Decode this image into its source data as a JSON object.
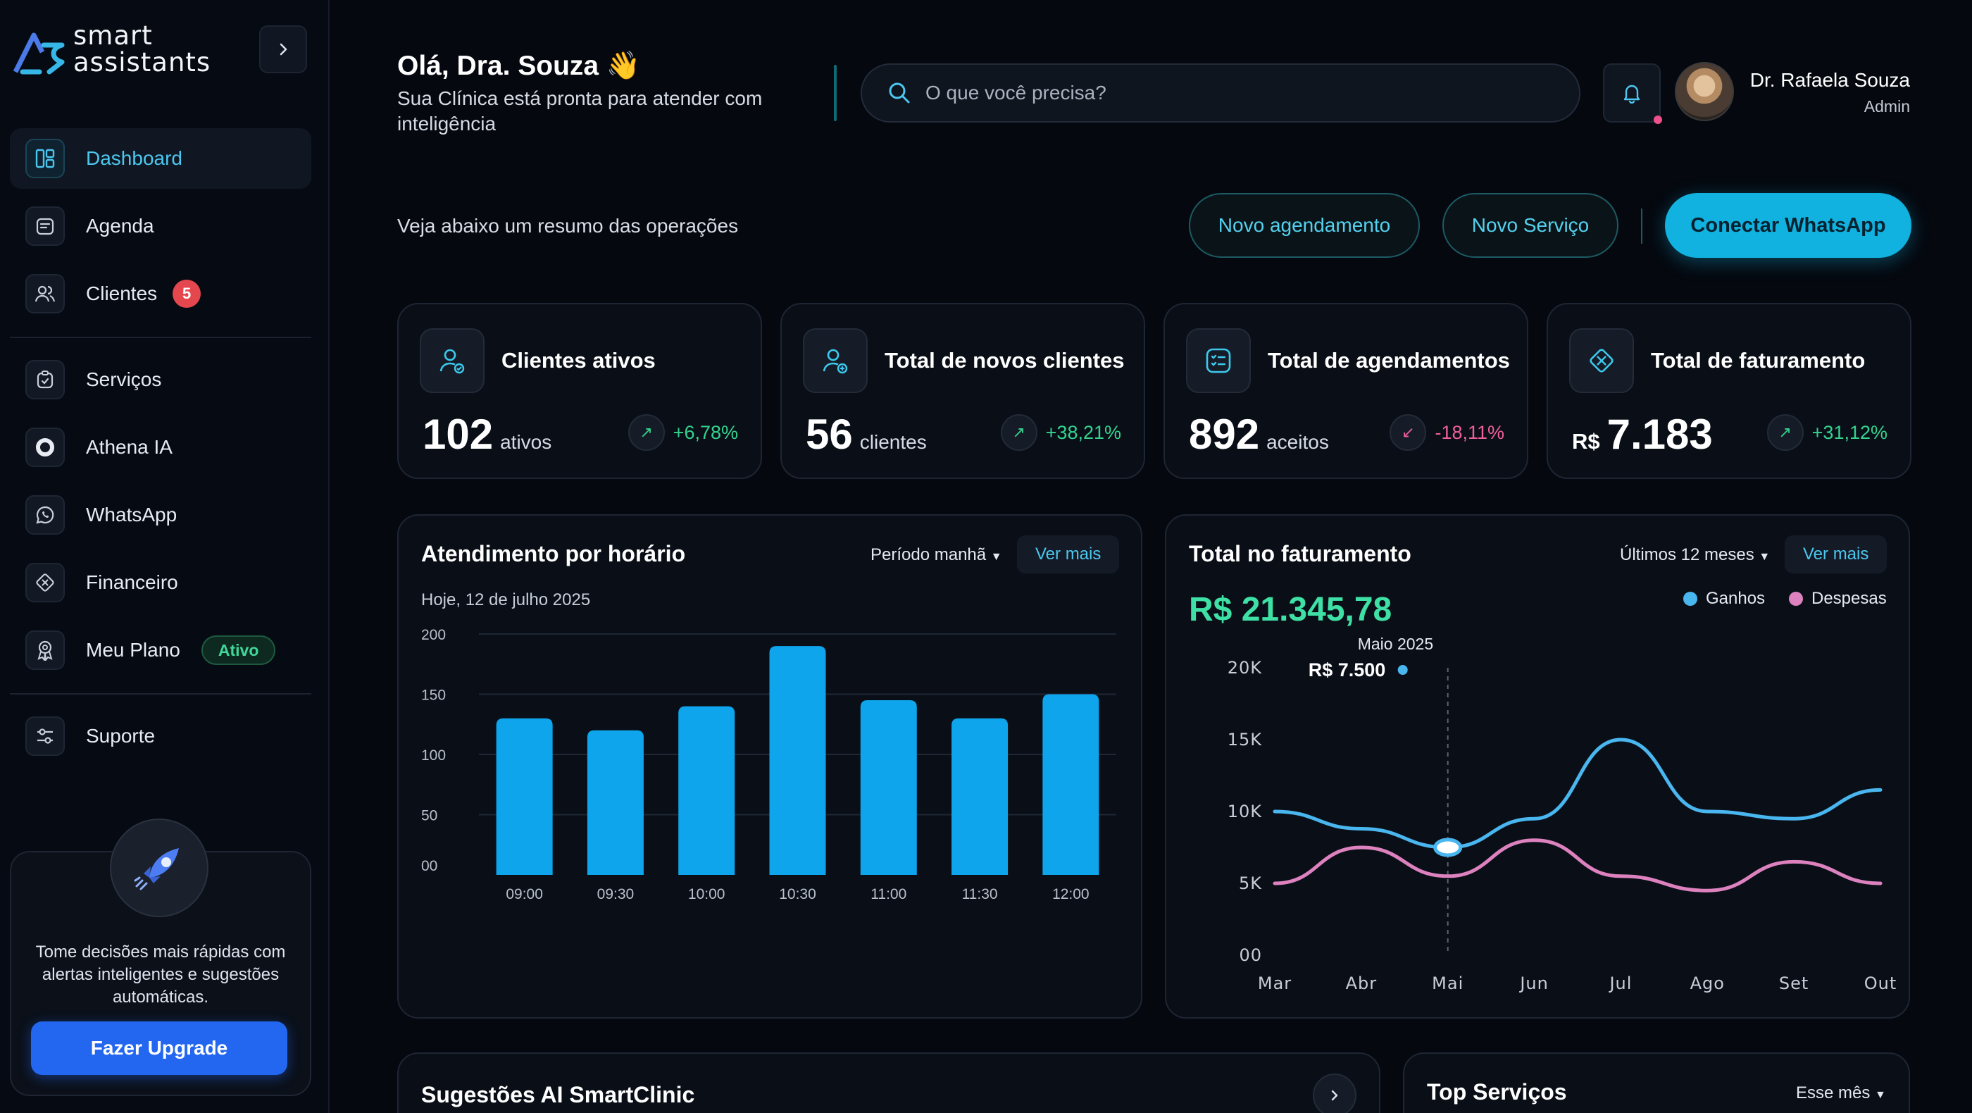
{
  "brand": {
    "line1": "smart",
    "line2": "assistants"
  },
  "sidebar": {
    "items": [
      {
        "label": "Dashboard",
        "icon": "dashboard-icon",
        "active": true
      },
      {
        "label": "Agenda",
        "icon": "calendar-icon"
      },
      {
        "label": "Clientes",
        "icon": "users-icon",
        "badge": "5"
      },
      {
        "label": "Serviços",
        "icon": "clipboard-icon"
      },
      {
        "label": "Athena IA",
        "icon": "ai-ring-icon"
      },
      {
        "label": "WhatsApp",
        "icon": "whatsapp-icon"
      },
      {
        "label": "Financeiro",
        "icon": "finance-icon"
      },
      {
        "label": "Meu Plano",
        "icon": "plan-icon",
        "badge": "Ativo"
      },
      {
        "label": "Suporte",
        "icon": "sliders-icon"
      }
    ],
    "upgrade": {
      "text": "Tome decisões mais rápidas com alertas inteligentes e sugestões automáticas.",
      "button": "Fazer Upgrade"
    }
  },
  "header": {
    "greeting": "Olá, Dra. Souza 👋",
    "subtitle": "Sua Clínica está pronta para atender com inteligência",
    "search_placeholder": "O que você precisa?",
    "user_name": "Dr. Rafaela Souza",
    "user_role": "Admin"
  },
  "actions": {
    "summary": "Veja abaixo um resumo das operações",
    "novo_agendamento": "Novo agendamento",
    "novo_servico": "Novo Serviço",
    "whatsapp": "Conectar WhatsApp"
  },
  "stats": [
    {
      "title": "Clientes ativos",
      "value": "102",
      "unit": "ativos",
      "trend": "+6,78%",
      "dir": "up",
      "icon": "user-check-icon"
    },
    {
      "title": "Total de novos clientes",
      "value": "56",
      "unit": "clientes",
      "trend": "+38,21%",
      "dir": "up",
      "icon": "user-plus-icon"
    },
    {
      "title": "Total de agendamentos",
      "value": "892",
      "unit": "aceitos",
      "trend": "-18,11%",
      "dir": "down",
      "icon": "checklist-icon"
    },
    {
      "title": "Total de faturamento",
      "currency": "R$",
      "value": "7.183",
      "trend": "+31,12%",
      "dir": "up",
      "icon": "diamond-icon"
    }
  ],
  "attendance": {
    "title": "Atendimento por horário",
    "filter": "Período manhã",
    "ver_mais": "Ver mais",
    "date": "Hoje, 12 de julho 2025"
  },
  "revenue": {
    "title": "Total no faturamento",
    "filter": "Últimos 12 meses",
    "ver_mais": "Ver mais",
    "total": "R$ 21.345,78",
    "tooltip_month": "Maio 2025",
    "tooltip_value": "R$ 7.500",
    "legend_gains": "Ganhos",
    "legend_expenses": "Despesas"
  },
  "bottom": {
    "suggestions_title": "Sugestões AI SmartClinic",
    "top_services_title": "Top Serviços",
    "top_services_filter": "Esse mês"
  },
  "colors": {
    "accent": "#11b2df",
    "bar": "#0ea5ec",
    "gains": "#4ab6ef",
    "expenses": "#dd82bf",
    "positive": "#34d38f",
    "negative": "#ef5f9a"
  },
  "chart_data": [
    {
      "type": "bar",
      "title": "Atendimento por horário",
      "categories": [
        "09:00",
        "09:30",
        "10:00",
        "10:30",
        "11:00",
        "11:30",
        "12:00"
      ],
      "values": [
        130,
        120,
        140,
        190,
        145,
        130,
        150
      ],
      "ytick_labels": [
        "200",
        "150",
        "100",
        "50",
        "00"
      ],
      "yticks": [
        200,
        150,
        100,
        50,
        0
      ],
      "ylim": [
        0,
        200
      ],
      "grid": true
    },
    {
      "type": "line",
      "title": "Total no faturamento",
      "x": [
        "Mar",
        "Abr",
        "Mai",
        "Jun",
        "Jul",
        "Ago",
        "Set",
        "Out"
      ],
      "series": [
        {
          "name": "Ganhos",
          "values": [
            10000,
            8800,
            7500,
            9500,
            15000,
            10000,
            9500,
            11500
          ]
        },
        {
          "name": "Despesas",
          "values": [
            5000,
            7500,
            5500,
            8000,
            5500,
            4500,
            6500,
            5000
          ]
        }
      ],
      "ytick_labels": [
        "20K",
        "15K",
        "10K",
        "5K",
        "00"
      ],
      "yticks": [
        20000,
        15000,
        10000,
        5000,
        0
      ],
      "ylim": [
        0,
        20000
      ],
      "highlight": {
        "x": "Mai",
        "value": 7500
      },
      "legend": "top-right"
    }
  ]
}
